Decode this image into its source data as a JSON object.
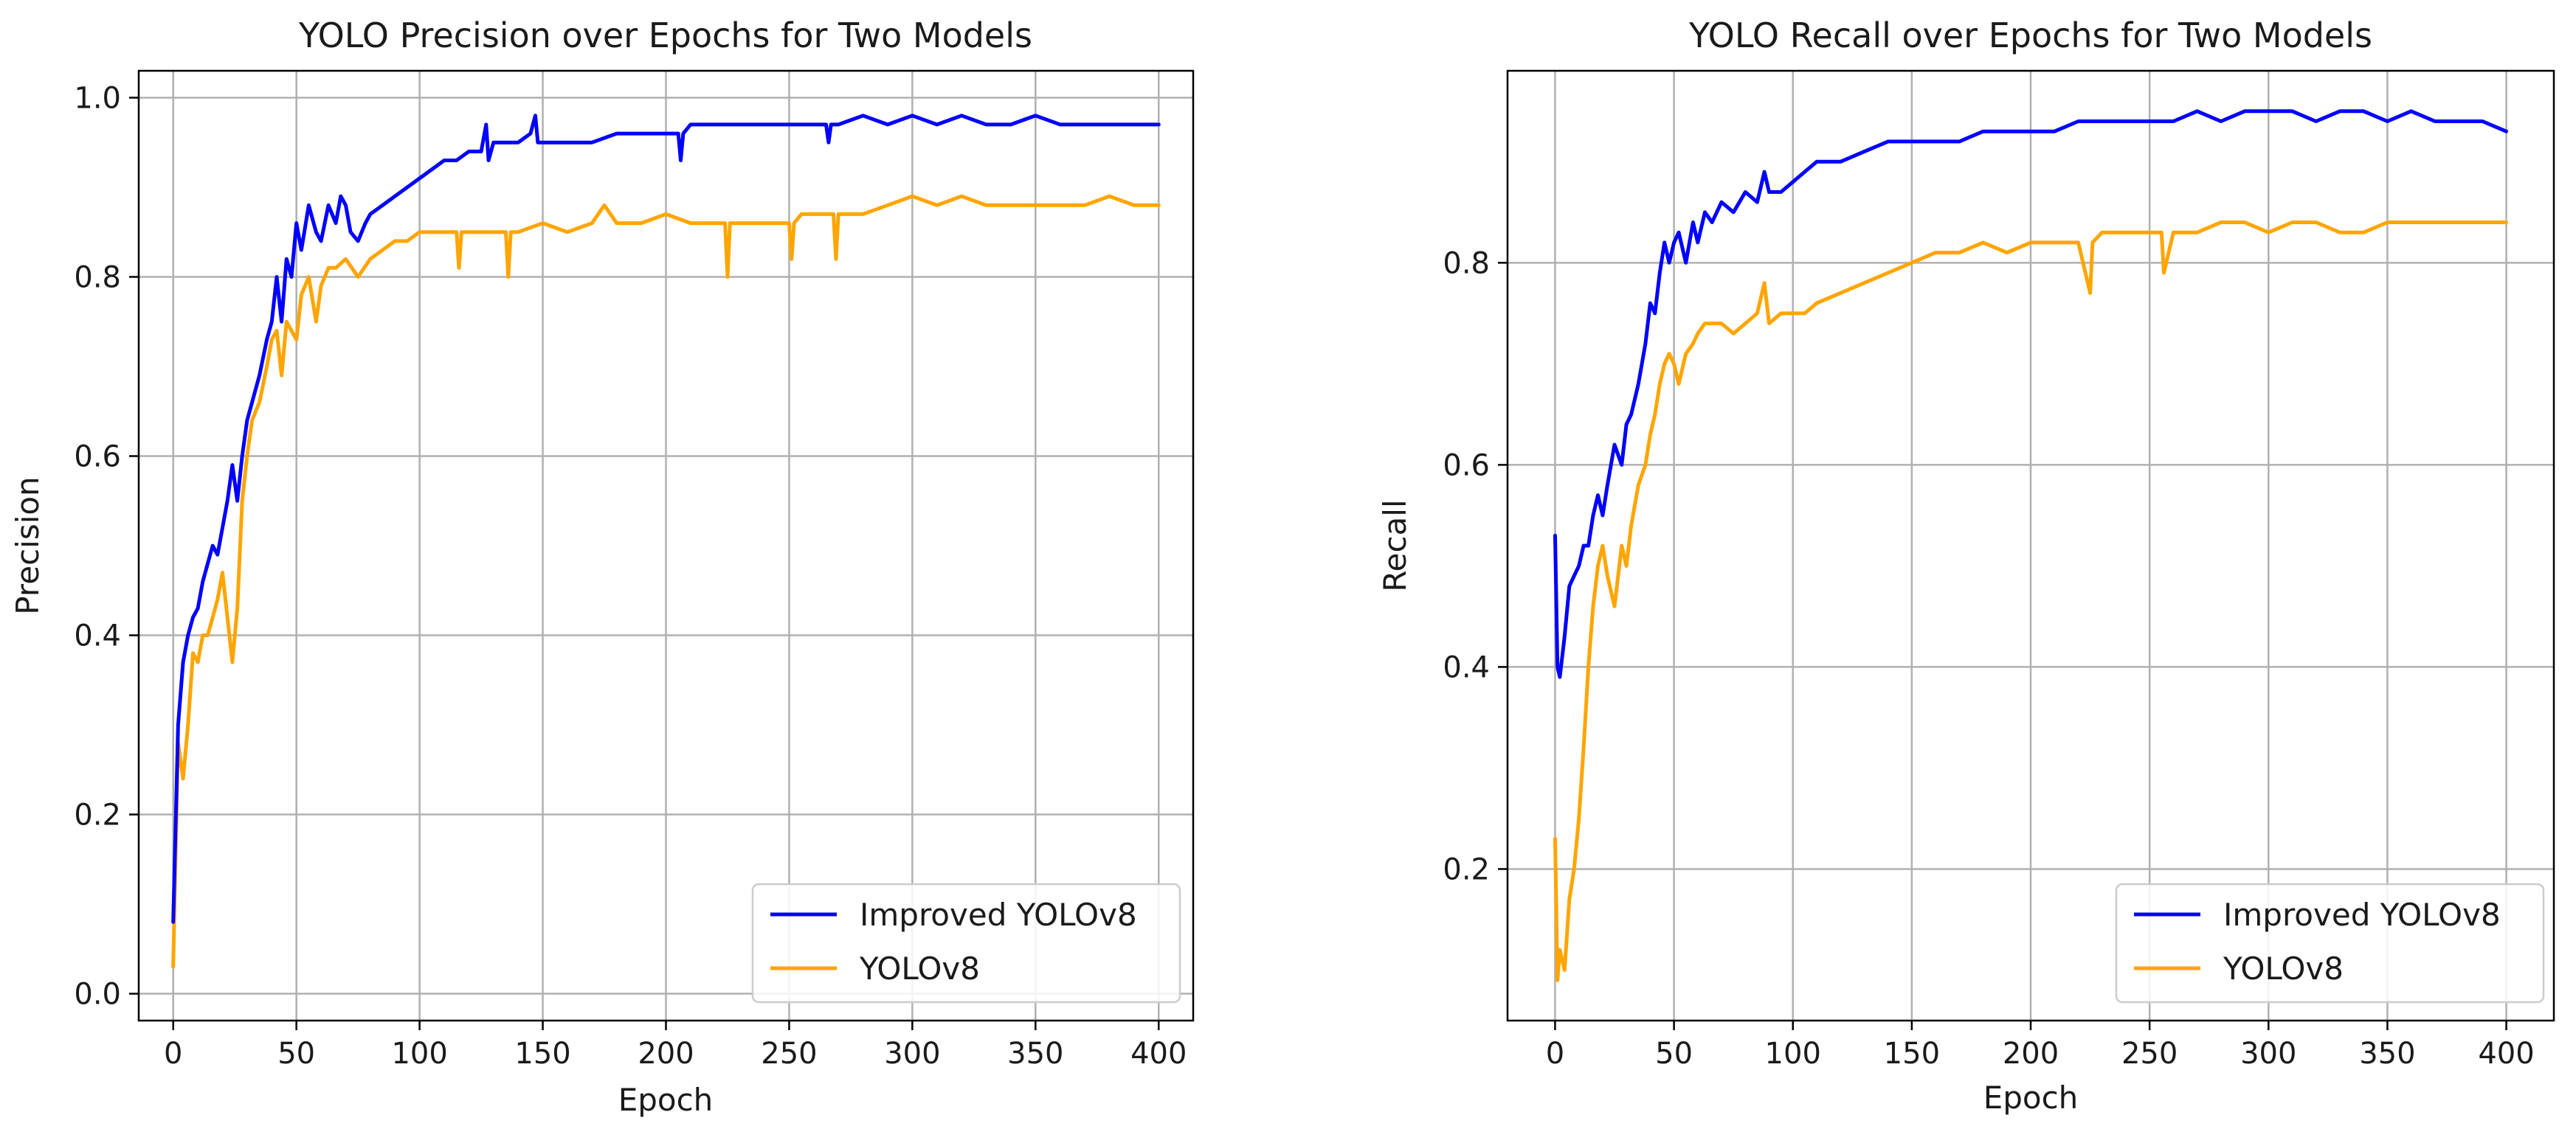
{
  "figure": {
    "background": "#ffffff"
  },
  "colors": {
    "improved": "#0000ff",
    "baseline": "#ffa500",
    "grid": "#b0b0b0",
    "axis": "#000000"
  },
  "chart_data": [
    {
      "type": "line",
      "title": "YOLO Precision over Epochs for Two Models",
      "xlabel": "Epoch",
      "ylabel": "Precision",
      "xlim": [
        -14,
        414
      ],
      "ylim": [
        -0.03,
        1.03
      ],
      "xticks": [
        0,
        50,
        100,
        150,
        200,
        250,
        300,
        350,
        400
      ],
      "xtick_labels": [
        "0",
        "50",
        "100",
        "150",
        "200",
        "250",
        "300",
        "350",
        "400"
      ],
      "yticks": [
        0.0,
        0.2,
        0.4,
        0.6,
        0.8,
        1.0
      ],
      "ytick_labels": [
        "0.0",
        "0.2",
        "0.4",
        "0.6",
        "0.8",
        "1.0"
      ],
      "grid": true,
      "legend": "lower-right",
      "series": [
        {
          "name": "Improved YOLOv8",
          "color": "#0000ff",
          "x": [
            0,
            2,
            4,
            6,
            8,
            10,
            12,
            14,
            16,
            18,
            20,
            22,
            24,
            26,
            28,
            30,
            32,
            35,
            38,
            40,
            42,
            44,
            46,
            48,
            50,
            52,
            55,
            58,
            60,
            63,
            66,
            68,
            70,
            72,
            75,
            78,
            80,
            85,
            90,
            95,
            100,
            105,
            110,
            115,
            120,
            125,
            127,
            128,
            130,
            135,
            140,
            145,
            147,
            148,
            150,
            160,
            170,
            180,
            190,
            200,
            205,
            206,
            207,
            210,
            220,
            230,
            240,
            250,
            260,
            265,
            266,
            267,
            270,
            280,
            290,
            300,
            310,
            320,
            330,
            340,
            350,
            360,
            370,
            380,
            390,
            400
          ],
          "y": [
            0.08,
            0.3,
            0.37,
            0.4,
            0.42,
            0.43,
            0.46,
            0.48,
            0.5,
            0.49,
            0.52,
            0.55,
            0.59,
            0.55,
            0.6,
            0.64,
            0.66,
            0.69,
            0.73,
            0.75,
            0.8,
            0.75,
            0.82,
            0.8,
            0.86,
            0.83,
            0.88,
            0.85,
            0.84,
            0.88,
            0.86,
            0.89,
            0.88,
            0.85,
            0.84,
            0.86,
            0.87,
            0.88,
            0.89,
            0.9,
            0.91,
            0.92,
            0.93,
            0.93,
            0.94,
            0.94,
            0.97,
            0.93,
            0.95,
            0.95,
            0.95,
            0.96,
            0.98,
            0.95,
            0.95,
            0.95,
            0.95,
            0.96,
            0.96,
            0.96,
            0.96,
            0.93,
            0.96,
            0.97,
            0.97,
            0.97,
            0.97,
            0.97,
            0.97,
            0.97,
            0.95,
            0.97,
            0.97,
            0.98,
            0.97,
            0.98,
            0.97,
            0.98,
            0.97,
            0.97,
            0.98,
            0.97,
            0.97,
            0.97,
            0.97,
            0.97
          ]
        },
        {
          "name": "YOLOv8",
          "color": "#ffa500",
          "x": [
            0,
            2,
            4,
            6,
            8,
            10,
            12,
            14,
            16,
            18,
            20,
            22,
            24,
            26,
            28,
            30,
            32,
            35,
            38,
            40,
            42,
            44,
            46,
            48,
            50,
            52,
            55,
            58,
            60,
            63,
            66,
            70,
            75,
            80,
            85,
            90,
            95,
            100,
            110,
            115,
            116,
            117,
            120,
            130,
            135,
            136,
            137,
            140,
            150,
            160,
            170,
            175,
            180,
            190,
            200,
            210,
            220,
            224,
            225,
            226,
            230,
            240,
            250,
            251,
            252,
            255,
            260,
            268,
            269,
            270,
            280,
            290,
            300,
            310,
            320,
            330,
            340,
            350,
            360,
            370,
            380,
            390,
            400
          ],
          "y": [
            0.03,
            0.28,
            0.24,
            0.3,
            0.38,
            0.37,
            0.4,
            0.4,
            0.42,
            0.44,
            0.47,
            0.42,
            0.37,
            0.43,
            0.55,
            0.6,
            0.64,
            0.66,
            0.7,
            0.73,
            0.74,
            0.69,
            0.75,
            0.74,
            0.73,
            0.78,
            0.8,
            0.75,
            0.79,
            0.81,
            0.81,
            0.82,
            0.8,
            0.82,
            0.83,
            0.84,
            0.84,
            0.85,
            0.85,
            0.85,
            0.81,
            0.85,
            0.85,
            0.85,
            0.85,
            0.8,
            0.85,
            0.85,
            0.86,
            0.85,
            0.86,
            0.88,
            0.86,
            0.86,
            0.87,
            0.86,
            0.86,
            0.86,
            0.8,
            0.86,
            0.86,
            0.86,
            0.86,
            0.82,
            0.86,
            0.87,
            0.87,
            0.87,
            0.82,
            0.87,
            0.87,
            0.88,
            0.89,
            0.88,
            0.89,
            0.88,
            0.88,
            0.88,
            0.88,
            0.88,
            0.89,
            0.88,
            0.88
          ]
        }
      ]
    },
    {
      "type": "line",
      "title": "YOLO Recall over Epochs for Two Models",
      "xlabel": "Epoch",
      "ylabel": "Recall",
      "xlim": [
        -20,
        420
      ],
      "ylim": [
        0.05,
        0.99
      ],
      "xticks": [
        0,
        50,
        100,
        150,
        200,
        250,
        300,
        350,
        400
      ],
      "xtick_labels": [
        "0",
        "50",
        "100",
        "150",
        "200",
        "250",
        "300",
        "350",
        "400"
      ],
      "yticks": [
        0.2,
        0.4,
        0.6,
        0.8
      ],
      "ytick_labels": [
        "0.2",
        "0.4",
        "0.6",
        "0.8"
      ],
      "grid": true,
      "legend": "lower-right",
      "series": [
        {
          "name": "Improved YOLOv8",
          "color": "#0000ff",
          "x": [
            0,
            1,
            2,
            4,
            6,
            8,
            10,
            12,
            14,
            16,
            18,
            20,
            22,
            25,
            28,
            30,
            32,
            35,
            38,
            40,
            42,
            44,
            46,
            48,
            50,
            52,
            55,
            58,
            60,
            63,
            66,
            70,
            75,
            80,
            85,
            88,
            90,
            95,
            100,
            105,
            110,
            120,
            130,
            140,
            150,
            160,
            170,
            180,
            190,
            200,
            210,
            220,
            230,
            240,
            250,
            260,
            270,
            280,
            290,
            300,
            310,
            320,
            330,
            340,
            350,
            360,
            370,
            380,
            390,
            400
          ],
          "y": [
            0.53,
            0.4,
            0.39,
            0.43,
            0.48,
            0.49,
            0.5,
            0.52,
            0.52,
            0.55,
            0.57,
            0.55,
            0.58,
            0.62,
            0.6,
            0.64,
            0.65,
            0.68,
            0.72,
            0.76,
            0.75,
            0.79,
            0.82,
            0.8,
            0.82,
            0.83,
            0.8,
            0.84,
            0.82,
            0.85,
            0.84,
            0.86,
            0.85,
            0.87,
            0.86,
            0.89,
            0.87,
            0.87,
            0.88,
            0.89,
            0.9,
            0.9,
            0.91,
            0.92,
            0.92,
            0.92,
            0.92,
            0.93,
            0.93,
            0.93,
            0.93,
            0.94,
            0.94,
            0.94,
            0.94,
            0.94,
            0.95,
            0.94,
            0.95,
            0.95,
            0.95,
            0.94,
            0.95,
            0.95,
            0.94,
            0.95,
            0.94,
            0.94,
            0.94,
            0.93
          ]
        },
        {
          "name": "YOLOv8",
          "color": "#ffa500",
          "x": [
            0,
            1,
            2,
            4,
            6,
            8,
            10,
            12,
            14,
            16,
            18,
            20,
            22,
            25,
            28,
            30,
            32,
            35,
            38,
            40,
            42,
            44,
            46,
            48,
            50,
            52,
            55,
            58,
            60,
            63,
            66,
            70,
            75,
            80,
            85,
            88,
            90,
            95,
            100,
            105,
            110,
            120,
            130,
            140,
            150,
            160,
            170,
            180,
            190,
            200,
            210,
            220,
            225,
            226,
            230,
            240,
            250,
            255,
            256,
            260,
            270,
            280,
            290,
            300,
            310,
            320,
            330,
            340,
            350,
            360,
            370,
            380,
            390,
            400
          ],
          "y": [
            0.23,
            0.09,
            0.12,
            0.1,
            0.17,
            0.2,
            0.25,
            0.32,
            0.4,
            0.46,
            0.5,
            0.52,
            0.49,
            0.46,
            0.52,
            0.5,
            0.54,
            0.58,
            0.6,
            0.63,
            0.65,
            0.68,
            0.7,
            0.71,
            0.7,
            0.68,
            0.71,
            0.72,
            0.73,
            0.74,
            0.74,
            0.74,
            0.73,
            0.74,
            0.75,
            0.78,
            0.74,
            0.75,
            0.75,
            0.75,
            0.76,
            0.77,
            0.78,
            0.79,
            0.8,
            0.81,
            0.81,
            0.82,
            0.81,
            0.82,
            0.82,
            0.82,
            0.77,
            0.82,
            0.83,
            0.83,
            0.83,
            0.83,
            0.79,
            0.83,
            0.83,
            0.84,
            0.84,
            0.83,
            0.84,
            0.84,
            0.83,
            0.83,
            0.84,
            0.84,
            0.84,
            0.84,
            0.84,
            0.84
          ]
        }
      ]
    }
  ]
}
